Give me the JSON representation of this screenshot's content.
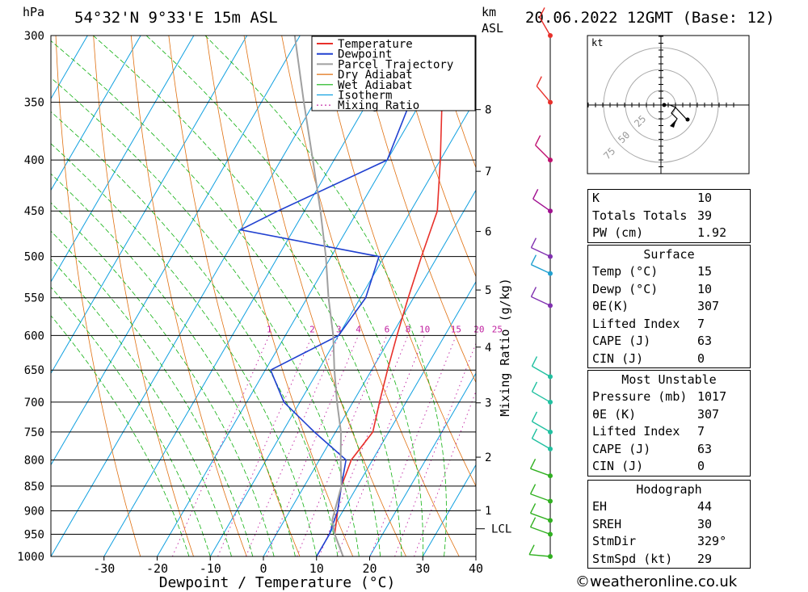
{
  "header": {
    "location": "54°32'N  9°33'E  15m  ASL",
    "date": "20.06.2022 12GMT (Base: 12)",
    "hpa_unit": "hPa",
    "km_unit": "km",
    "asl_unit": "ASL"
  },
  "chart_data": {
    "type": "line",
    "xlabel": "Dewpoint / Temperature (°C)",
    "y2label": "Mixing Ratio (g/kg)",
    "xlim": [
      -40,
      40
    ],
    "ylim": [
      1000,
      300
    ],
    "y_scale": "log-pressure",
    "x_ticks": [
      "-30",
      "-20",
      "-10",
      "0",
      "10",
      "20",
      "30",
      "40"
    ],
    "pressure_levels": [
      "300",
      "350",
      "400",
      "450",
      "500",
      "550",
      "600",
      "650",
      "700",
      "750",
      "800",
      "850",
      "900",
      "950",
      "1000"
    ],
    "km_ticks": [
      "1",
      "2",
      "3",
      "4",
      "5",
      "6",
      "7",
      "8"
    ],
    "lcl_label": "LCL",
    "mixing_ratio_labels": [
      "1",
      "2",
      "3",
      "4",
      "6",
      "8",
      "10",
      "15",
      "20",
      "25"
    ],
    "legend": [
      "Temperature",
      "Dewpoint",
      "Parcel Trajectory",
      "Dry Adiabat",
      "Wet Adiabat",
      "Isotherm",
      "Mixing Ratio"
    ],
    "colors": {
      "temperature": "#e8302a",
      "dewpoint": "#2040d0",
      "parcel": "#a0a0a0",
      "dry_adiabat": "#e07010",
      "wet_adiabat": "#10b010",
      "isotherm": "#10a0e0",
      "mixing_ratio": "#c020a0"
    },
    "series": [
      {
        "name": "Temperature",
        "points": [
          [
            15,
            1000
          ],
          [
            11,
            950
          ],
          [
            9,
            900
          ],
          [
            7,
            850
          ],
          [
            6,
            800
          ],
          [
            7,
            750
          ],
          [
            5,
            700
          ],
          [
            3,
            650
          ],
          [
            1,
            600
          ],
          [
            -1,
            550
          ],
          [
            -3,
            500
          ],
          [
            -5,
            450
          ],
          [
            -10,
            400
          ],
          [
            -16,
            350
          ],
          [
            -25,
            300
          ]
        ]
      },
      {
        "name": "Dewpoint",
        "points": [
          [
            10,
            1000
          ],
          [
            10,
            950
          ],
          [
            9,
            900
          ],
          [
            7,
            850
          ],
          [
            5,
            800
          ],
          [
            -4,
            750
          ],
          [
            -13,
            700
          ],
          [
            -19,
            650
          ],
          [
            -10,
            600
          ],
          [
            -9,
            550
          ],
          [
            -11,
            500
          ],
          [
            -40,
            470
          ],
          [
            -35,
            450
          ],
          [
            -20,
            400
          ],
          [
            -22,
            350
          ],
          [
            -30,
            300
          ]
        ]
      },
      {
        "name": "Parcel Trajectory",
        "points": [
          [
            15,
            1000
          ],
          [
            11,
            950
          ],
          [
            9,
            920
          ],
          [
            7,
            850
          ],
          [
            4,
            800
          ],
          [
            1,
            750
          ],
          [
            -3,
            700
          ],
          [
            -7,
            650
          ],
          [
            -11,
            600
          ],
          [
            -16,
            550
          ],
          [
            -21,
            500
          ],
          [
            -27,
            450
          ],
          [
            -34,
            400
          ],
          [
            -42,
            350
          ],
          [
            -51,
            300
          ]
        ]
      }
    ]
  },
  "hodograph": {
    "unit_label": "kt",
    "ring_labels": [
      "25",
      "50",
      "75"
    ]
  },
  "indices": [
    {
      "label": "K",
      "value": "10"
    },
    {
      "label": "Totals Totals",
      "value": "39"
    },
    {
      "label": "PW (cm)",
      "value": "1.92"
    }
  ],
  "surface": {
    "title": "Surface",
    "rows": [
      {
        "label": "Temp (°C)",
        "value": "15"
      },
      {
        "label": "Dewp (°C)",
        "value": "10"
      },
      {
        "label": "θE(K)",
        "value": "307"
      },
      {
        "label": "Lifted Index",
        "value": "7"
      },
      {
        "label": "CAPE (J)",
        "value": "63"
      },
      {
        "label": "CIN (J)",
        "value": "0"
      }
    ]
  },
  "most_unstable": {
    "title": "Most Unstable",
    "rows": [
      {
        "label": "Pressure (mb)",
        "value": "1017"
      },
      {
        "label": "θE (K)",
        "value": "307"
      },
      {
        "label": "Lifted Index",
        "value": "7"
      },
      {
        "label": "CAPE (J)",
        "value": "63"
      },
      {
        "label": "CIN (J)",
        "value": "0"
      }
    ]
  },
  "hodograph_table": {
    "title": "Hodograph",
    "rows": [
      {
        "label": "EH",
        "value": "44"
      },
      {
        "label": "SREH",
        "value": "30"
      },
      {
        "label": "StmDir",
        "value": "329°"
      },
      {
        "label": "StmSpd (kt)",
        "value": "29"
      }
    ]
  },
  "footer": "©weatheronline.co.uk"
}
